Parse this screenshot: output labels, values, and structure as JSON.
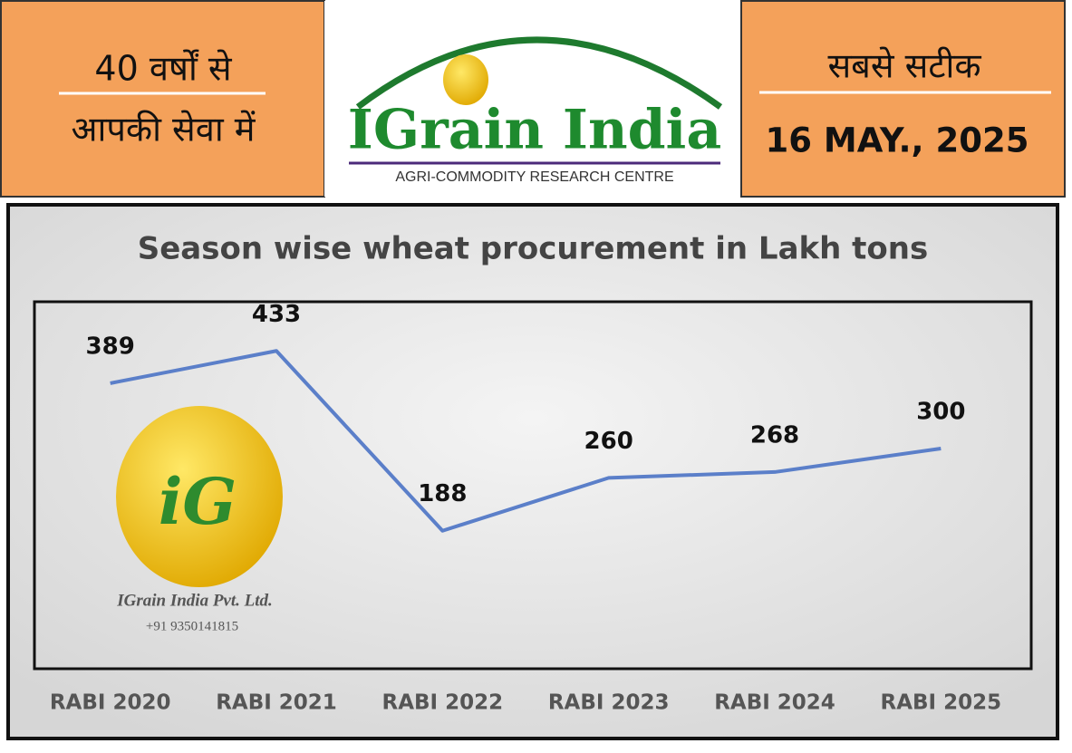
{
  "header": {
    "left_line1": "40 वर्षों से",
    "left_line2": "आपकी सेवा में",
    "brand": "IGrain India",
    "tagline": "AGRI-COMMODITY RESEARCH CENTRE",
    "right_line1": "सबसे सटीक",
    "date": "16 MAY., 2025"
  },
  "watermark": {
    "monogram": "iG",
    "company": "IGrain India Pvt. Ltd.",
    "phone": "+91 9350141815"
  },
  "chart_data": {
    "type": "line",
    "title": "Season wise wheat procurement in Lakh tons",
    "categories": [
      "RABI 2020",
      "RABI 2021",
      "RABI 2022",
      "RABI 2023",
      "RABI 2024",
      "RABI 2025"
    ],
    "values": [
      389,
      433,
      188,
      260,
      268,
      300
    ],
    "color": "#5b7fc9",
    "ylim": [
      0,
      500
    ]
  }
}
